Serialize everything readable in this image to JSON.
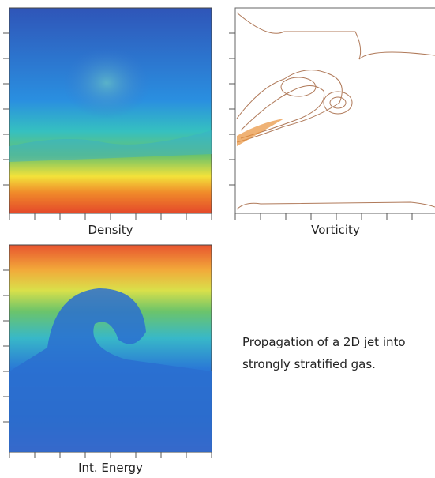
{
  "panels": [
    {
      "label": "Density"
    },
    {
      "label": "Vorticity"
    },
    {
      "label": "Int. Energy"
    }
  ],
  "caption": {
    "lines": [
      "Propagation of a 2D jet into",
      "strongly stratified gas."
    ]
  }
}
